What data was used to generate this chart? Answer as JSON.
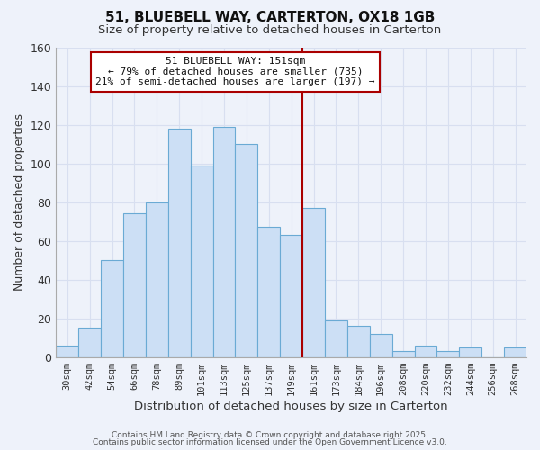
{
  "title": "51, BLUEBELL WAY, CARTERTON, OX18 1GB",
  "subtitle": "Size of property relative to detached houses in Carterton",
  "xlabel": "Distribution of detached houses by size in Carterton",
  "ylabel": "Number of detached properties",
  "bar_labels": [
    "30sqm",
    "42sqm",
    "54sqm",
    "66sqm",
    "78sqm",
    "89sqm",
    "101sqm",
    "113sqm",
    "125sqm",
    "137sqm",
    "149sqm",
    "161sqm",
    "173sqm",
    "184sqm",
    "196sqm",
    "208sqm",
    "220sqm",
    "232sqm",
    "244sqm",
    "256sqm",
    "268sqm"
  ],
  "bar_values": [
    6,
    15,
    50,
    74,
    80,
    118,
    99,
    119,
    110,
    67,
    63,
    77,
    19,
    16,
    12,
    3,
    6,
    3,
    5,
    0,
    5
  ],
  "bar_color": "#ccdff5",
  "bar_edge_color": "#6aaad4",
  "vline_color": "#aa0000",
  "ylim": [
    0,
    160
  ],
  "yticks": [
    0,
    20,
    40,
    60,
    80,
    100,
    120,
    140,
    160
  ],
  "annotation_title": "51 BLUEBELL WAY: 151sqm",
  "annotation_line1": "← 79% of detached houses are smaller (735)",
  "annotation_line2": "21% of semi-detached houses are larger (197) →",
  "annotation_box_color": "#ffffff",
  "annotation_box_edge": "#aa0000",
  "background_color": "#eef2fa",
  "grid_color": "#d8dff0",
  "footer1": "Contains HM Land Registry data © Crown copyright and database right 2025.",
  "footer2": "Contains public sector information licensed under the Open Government Licence v3.0."
}
